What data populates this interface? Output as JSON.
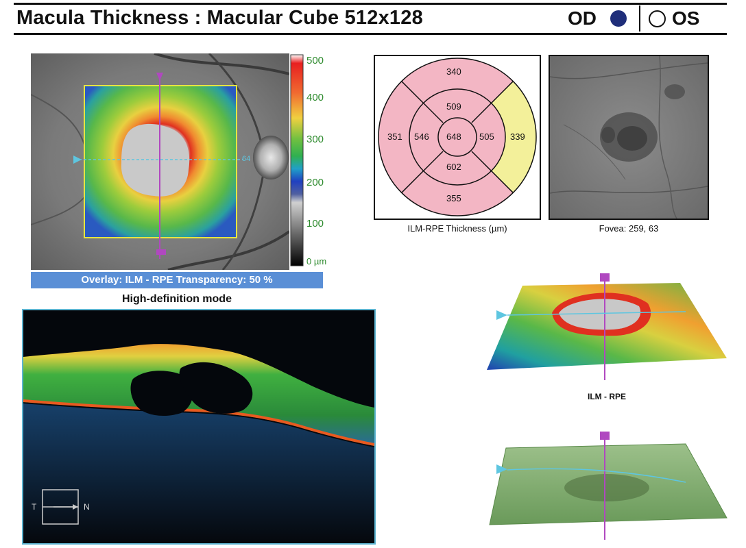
{
  "header": {
    "title": "Macula Thickness : Macular Cube 512x128",
    "eye_od": "OD",
    "eye_os": "OS",
    "selected_eye": "OD",
    "od_color": "#1f2e7a"
  },
  "colorbar": {
    "ticks": [
      "500",
      "400",
      "300",
      "200",
      "100",
      "0 µm"
    ],
    "tick_color": "#2e8b2e"
  },
  "fundus_map": {
    "slice_marker_top": "",
    "slice_marker_right": "64",
    "slice_marker_bottom": ""
  },
  "overlay_bar": {
    "text": "Overlay: ILM - RPE  Transparency: 50 %",
    "color": "#5a8fd6"
  },
  "bscan": {
    "title": "High-definition mode",
    "label_t": "T",
    "label_n": "N"
  },
  "etdrs": {
    "caption": "ILM-RPE Thickness (µm)",
    "outer_superior": "340",
    "outer_nasal": "351",
    "outer_temporal": "339",
    "outer_inferior": "355",
    "inner_superior": "509",
    "inner_nasal": "546",
    "inner_temporal": "505",
    "inner_inferior": "602",
    "center": "648",
    "pink": "#f3b6c4",
    "yellow": "#f3f09a"
  },
  "slo": {
    "caption": "Fovea: 259, 63"
  },
  "map3d": {
    "caption": "ILM - RPE"
  }
}
